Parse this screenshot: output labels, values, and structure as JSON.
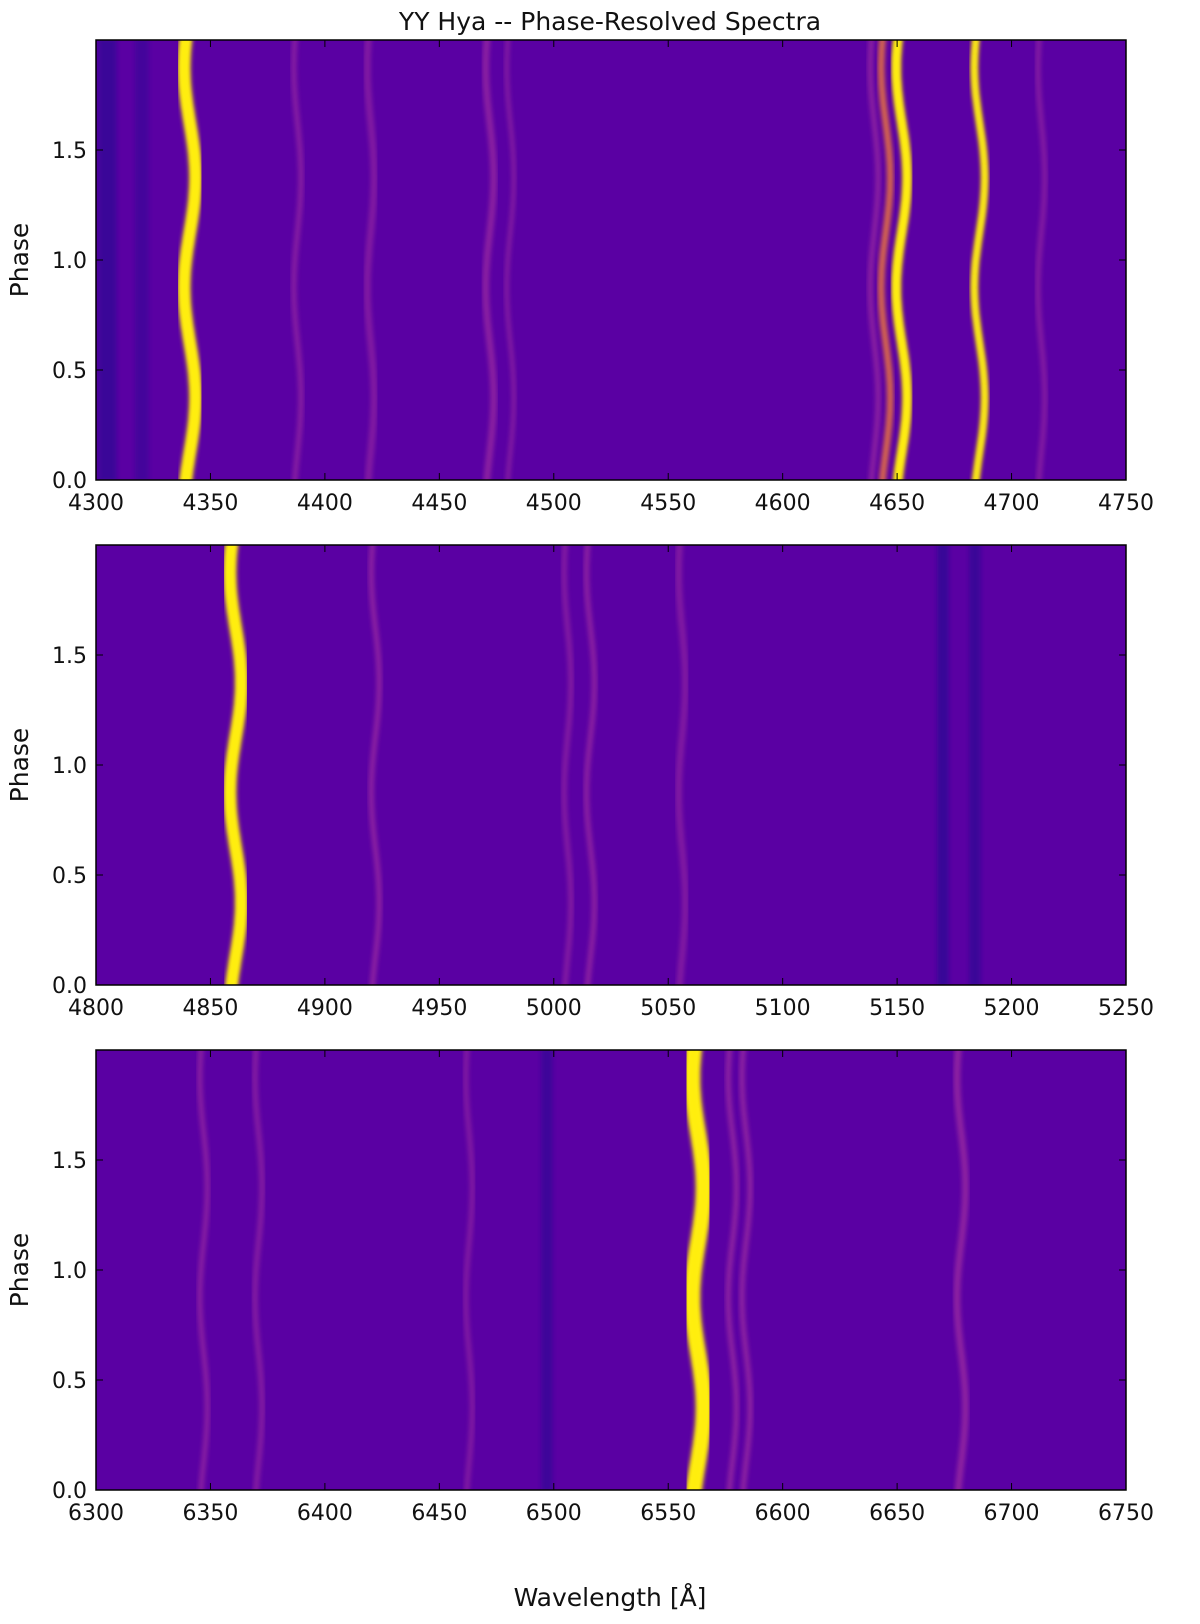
{
  "figure": {
    "title": "YY Hya -- Phase-Resolved Spectra",
    "xlabel": "Wavelength [Å]",
    "ylabel": "Phase"
  },
  "colors": {
    "background": "#5a00a3",
    "dark": "#1e0c8e",
    "mid": "#9f2ea0",
    "bright": "#f07a3a",
    "peak": "#ffee10"
  },
  "chart_data": [
    {
      "type": "heatmap",
      "title": "YY Hya -- Phase-Resolved Spectra",
      "xlabel": "",
      "ylabel": "Phase",
      "xlim": [
        4300,
        4750
      ],
      "ylim": [
        0.0,
        2.0
      ],
      "xticks": [
        "4300",
        "4350",
        "4400",
        "4450",
        "4500",
        "4550",
        "4600",
        "4650",
        "4700",
        "4750"
      ],
      "yticks": [
        "0.0",
        "0.5",
        "1.0",
        "1.5"
      ],
      "colormap": "plasma",
      "emission_lines": [
        {
          "wavelength": 4341,
          "relative_intensity": 1.0,
          "width": 5.5
        },
        {
          "wavelength": 4388,
          "relative_intensity": 0.28,
          "width": 2.5
        },
        {
          "wavelength": 4420,
          "relative_intensity": 0.22,
          "width": 3.0
        },
        {
          "wavelength": 4472,
          "relative_intensity": 0.42,
          "width": 3.0
        },
        {
          "wavelength": 4481,
          "relative_intensity": 0.25,
          "width": 2.0
        },
        {
          "wavelength": 4640,
          "relative_intensity": 0.4,
          "width": 2.5
        },
        {
          "wavelength": 4645,
          "relative_intensity": 0.6,
          "width": 3.0
        },
        {
          "wavelength": 4652,
          "relative_intensity": 0.9,
          "width": 4.0
        },
        {
          "wavelength": 4686,
          "relative_intensity": 0.82,
          "width": 3.0
        },
        {
          "wavelength": 4713,
          "relative_intensity": 0.22,
          "width": 2.5
        }
      ],
      "dark_bands": [
        {
          "wavelength": 4305,
          "relative_depth": 0.5,
          "width": 8
        },
        {
          "wavelength": 4320,
          "relative_depth": 0.35,
          "width": 6
        }
      ]
    },
    {
      "type": "heatmap",
      "title": "",
      "xlabel": "",
      "ylabel": "Phase",
      "xlim": [
        4800,
        5250
      ],
      "ylim": [
        0.0,
        2.0
      ],
      "xticks": [
        "4800",
        "4850",
        "4900",
        "4950",
        "5000",
        "5050",
        "5100",
        "5150",
        "5200",
        "5250"
      ],
      "yticks": [
        "0.0",
        "0.5",
        "1.0",
        "1.5"
      ],
      "colormap": "plasma",
      "emission_lines": [
        {
          "wavelength": 4861,
          "relative_intensity": 1.0,
          "width": 5.5
        },
        {
          "wavelength": 4922,
          "relative_intensity": 0.42,
          "width": 2.5
        },
        {
          "wavelength": 5006,
          "relative_intensity": 0.22,
          "width": 2.5
        },
        {
          "wavelength": 5016,
          "relative_intensity": 0.4,
          "width": 2.5
        },
        {
          "wavelength": 5056,
          "relative_intensity": 0.18,
          "width": 3.0
        }
      ],
      "dark_bands": [
        {
          "wavelength": 5170,
          "relative_depth": 0.55,
          "width": 5
        },
        {
          "wavelength": 5184,
          "relative_depth": 0.5,
          "width": 5
        }
      ]
    },
    {
      "type": "heatmap",
      "title": "",
      "xlabel": "Wavelength [Å]",
      "ylabel": "Phase",
      "xlim": [
        6300,
        6750
      ],
      "ylim": [
        0.0,
        2.0
      ],
      "xticks": [
        "6300",
        "6350",
        "6400",
        "6450",
        "6500",
        "6550",
        "6600",
        "6650",
        "6700",
        "6750"
      ],
      "yticks": [
        "0.0",
        "0.5",
        "1.0",
        "1.5"
      ],
      "colormap": "plasma",
      "emission_lines": [
        {
          "wavelength": 6347,
          "relative_intensity": 0.32,
          "width": 2.5
        },
        {
          "wavelength": 6371,
          "relative_intensity": 0.25,
          "width": 2.5
        },
        {
          "wavelength": 6463,
          "relative_intensity": 0.15,
          "width": 2.5
        },
        {
          "wavelength": 6563,
          "relative_intensity": 1.0,
          "width": 7.0
        },
        {
          "wavelength": 6578,
          "relative_intensity": 0.45,
          "width": 2.5
        },
        {
          "wavelength": 6584,
          "relative_intensity": 0.45,
          "width": 2.5
        },
        {
          "wavelength": 6678,
          "relative_intensity": 0.5,
          "width": 3.0
        }
      ],
      "dark_bands": [
        {
          "wavelength": 6497,
          "relative_depth": 0.45,
          "width": 5
        }
      ]
    }
  ]
}
